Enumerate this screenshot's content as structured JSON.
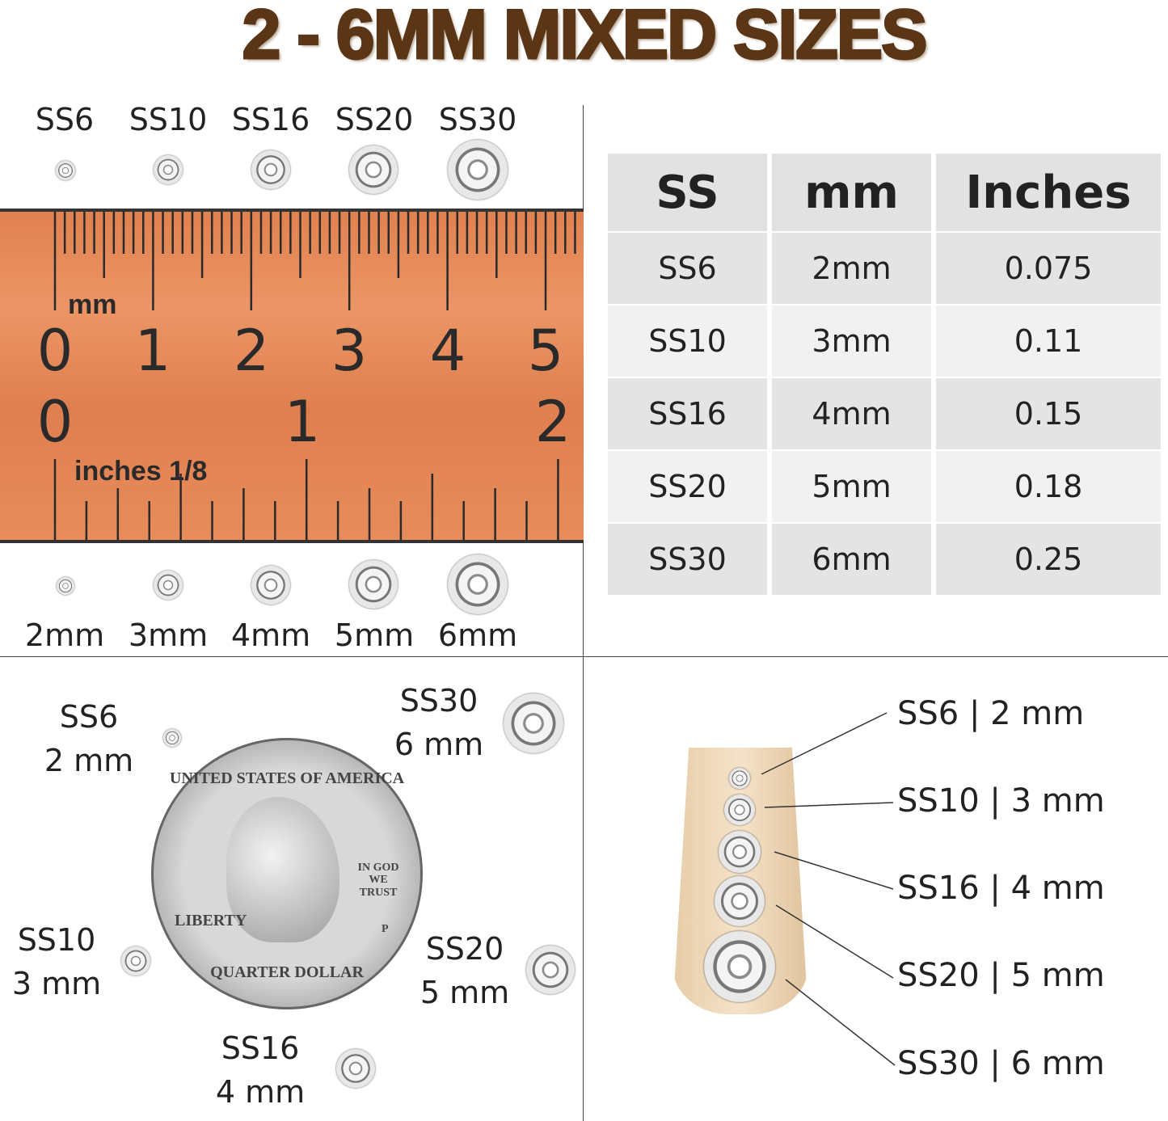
{
  "title": "2 - 6MM MIXED SIZES",
  "colors": {
    "title": "#5a3516",
    "ruler": "#e58554",
    "ink": "#222222"
  },
  "ruler": {
    "mm_unit": "mm",
    "mm_numbers": [
      "0",
      "1",
      "2",
      "3",
      "4",
      "5"
    ],
    "inch_numbers": [
      "0",
      "1",
      "2"
    ],
    "inch_unit": "inches 1/8"
  },
  "top_labels": [
    "SS6",
    "SS10",
    "SS16",
    "SS20",
    "SS30"
  ],
  "bottom_labels": [
    "2mm",
    "3mm",
    "4mm",
    "5mm",
    "6mm"
  ],
  "table": {
    "headers": [
      "SS",
      "mm",
      "Inches"
    ],
    "rows": [
      [
        "SS6",
        "2mm",
        "0.075"
      ],
      [
        "SS10",
        "3mm",
        "0.11"
      ],
      [
        "SS16",
        "4mm",
        "0.15"
      ],
      [
        "SS20",
        "5mm",
        "0.18"
      ],
      [
        "SS30",
        "6mm",
        "0.25"
      ]
    ]
  },
  "coin_panel": {
    "items": [
      {
        "ss": "SS6",
        "mm": "2 mm"
      },
      {
        "ss": "SS30",
        "mm": "6 mm"
      },
      {
        "ss": "SS10",
        "mm": "3 mm"
      },
      {
        "ss": "SS20",
        "mm": "5 mm"
      },
      {
        "ss": "SS16",
        "mm": "4 mm"
      }
    ],
    "coin_text": [
      "UNITED STATES OF AMERICA",
      "LIBERTY",
      "IN GOD WE TRUST",
      "QUARTER DOLLAR",
      "P"
    ]
  },
  "nail_panel": {
    "labels": [
      "SS6 | 2 mm",
      "SS10 | 3 mm",
      "SS16 | 4 mm",
      "SS20 | 5 mm",
      "SS30 | 6 mm"
    ]
  }
}
